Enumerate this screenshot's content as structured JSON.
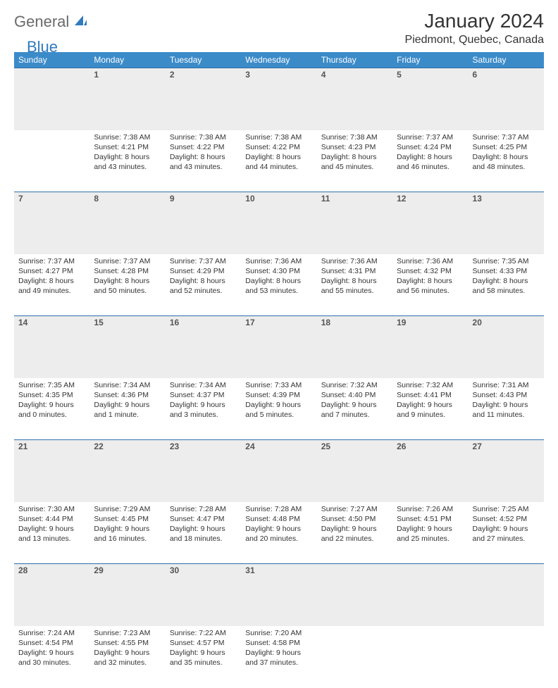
{
  "logo": {
    "text1": "General",
    "text2": "Blue"
  },
  "title": "January 2024",
  "location": "Piedmont, Quebec, Canada",
  "colors": {
    "header_bg": "#3b8bc9",
    "header_text": "#ffffff",
    "daynum_bg": "#ededed",
    "rule": "#2f6ea8",
    "logo_gray": "#6a6a6a",
    "logo_blue": "#2f7bbf"
  },
  "weekdays": [
    "Sunday",
    "Monday",
    "Tuesday",
    "Wednesday",
    "Thursday",
    "Friday",
    "Saturday"
  ],
  "weeks": [
    [
      {
        "num": "",
        "lines": []
      },
      {
        "num": "1",
        "lines": [
          "Sunrise: 7:38 AM",
          "Sunset: 4:21 PM",
          "Daylight: 8 hours",
          "and 43 minutes."
        ]
      },
      {
        "num": "2",
        "lines": [
          "Sunrise: 7:38 AM",
          "Sunset: 4:22 PM",
          "Daylight: 8 hours",
          "and 43 minutes."
        ]
      },
      {
        "num": "3",
        "lines": [
          "Sunrise: 7:38 AM",
          "Sunset: 4:22 PM",
          "Daylight: 8 hours",
          "and 44 minutes."
        ]
      },
      {
        "num": "4",
        "lines": [
          "Sunrise: 7:38 AM",
          "Sunset: 4:23 PM",
          "Daylight: 8 hours",
          "and 45 minutes."
        ]
      },
      {
        "num": "5",
        "lines": [
          "Sunrise: 7:37 AM",
          "Sunset: 4:24 PM",
          "Daylight: 8 hours",
          "and 46 minutes."
        ]
      },
      {
        "num": "6",
        "lines": [
          "Sunrise: 7:37 AM",
          "Sunset: 4:25 PM",
          "Daylight: 8 hours",
          "and 48 minutes."
        ]
      }
    ],
    [
      {
        "num": "7",
        "lines": [
          "Sunrise: 7:37 AM",
          "Sunset: 4:27 PM",
          "Daylight: 8 hours",
          "and 49 minutes."
        ]
      },
      {
        "num": "8",
        "lines": [
          "Sunrise: 7:37 AM",
          "Sunset: 4:28 PM",
          "Daylight: 8 hours",
          "and 50 minutes."
        ]
      },
      {
        "num": "9",
        "lines": [
          "Sunrise: 7:37 AM",
          "Sunset: 4:29 PM",
          "Daylight: 8 hours",
          "and 52 minutes."
        ]
      },
      {
        "num": "10",
        "lines": [
          "Sunrise: 7:36 AM",
          "Sunset: 4:30 PM",
          "Daylight: 8 hours",
          "and 53 minutes."
        ]
      },
      {
        "num": "11",
        "lines": [
          "Sunrise: 7:36 AM",
          "Sunset: 4:31 PM",
          "Daylight: 8 hours",
          "and 55 minutes."
        ]
      },
      {
        "num": "12",
        "lines": [
          "Sunrise: 7:36 AM",
          "Sunset: 4:32 PM",
          "Daylight: 8 hours",
          "and 56 minutes."
        ]
      },
      {
        "num": "13",
        "lines": [
          "Sunrise: 7:35 AM",
          "Sunset: 4:33 PM",
          "Daylight: 8 hours",
          "and 58 minutes."
        ]
      }
    ],
    [
      {
        "num": "14",
        "lines": [
          "Sunrise: 7:35 AM",
          "Sunset: 4:35 PM",
          "Daylight: 9 hours",
          "and 0 minutes."
        ]
      },
      {
        "num": "15",
        "lines": [
          "Sunrise: 7:34 AM",
          "Sunset: 4:36 PM",
          "Daylight: 9 hours",
          "and 1 minute."
        ]
      },
      {
        "num": "16",
        "lines": [
          "Sunrise: 7:34 AM",
          "Sunset: 4:37 PM",
          "Daylight: 9 hours",
          "and 3 minutes."
        ]
      },
      {
        "num": "17",
        "lines": [
          "Sunrise: 7:33 AM",
          "Sunset: 4:39 PM",
          "Daylight: 9 hours",
          "and 5 minutes."
        ]
      },
      {
        "num": "18",
        "lines": [
          "Sunrise: 7:32 AM",
          "Sunset: 4:40 PM",
          "Daylight: 9 hours",
          "and 7 minutes."
        ]
      },
      {
        "num": "19",
        "lines": [
          "Sunrise: 7:32 AM",
          "Sunset: 4:41 PM",
          "Daylight: 9 hours",
          "and 9 minutes."
        ]
      },
      {
        "num": "20",
        "lines": [
          "Sunrise: 7:31 AM",
          "Sunset: 4:43 PM",
          "Daylight: 9 hours",
          "and 11 minutes."
        ]
      }
    ],
    [
      {
        "num": "21",
        "lines": [
          "Sunrise: 7:30 AM",
          "Sunset: 4:44 PM",
          "Daylight: 9 hours",
          "and 13 minutes."
        ]
      },
      {
        "num": "22",
        "lines": [
          "Sunrise: 7:29 AM",
          "Sunset: 4:45 PM",
          "Daylight: 9 hours",
          "and 16 minutes."
        ]
      },
      {
        "num": "23",
        "lines": [
          "Sunrise: 7:28 AM",
          "Sunset: 4:47 PM",
          "Daylight: 9 hours",
          "and 18 minutes."
        ]
      },
      {
        "num": "24",
        "lines": [
          "Sunrise: 7:28 AM",
          "Sunset: 4:48 PM",
          "Daylight: 9 hours",
          "and 20 minutes."
        ]
      },
      {
        "num": "25",
        "lines": [
          "Sunrise: 7:27 AM",
          "Sunset: 4:50 PM",
          "Daylight: 9 hours",
          "and 22 minutes."
        ]
      },
      {
        "num": "26",
        "lines": [
          "Sunrise: 7:26 AM",
          "Sunset: 4:51 PM",
          "Daylight: 9 hours",
          "and 25 minutes."
        ]
      },
      {
        "num": "27",
        "lines": [
          "Sunrise: 7:25 AM",
          "Sunset: 4:52 PM",
          "Daylight: 9 hours",
          "and 27 minutes."
        ]
      }
    ],
    [
      {
        "num": "28",
        "lines": [
          "Sunrise: 7:24 AM",
          "Sunset: 4:54 PM",
          "Daylight: 9 hours",
          "and 30 minutes."
        ]
      },
      {
        "num": "29",
        "lines": [
          "Sunrise: 7:23 AM",
          "Sunset: 4:55 PM",
          "Daylight: 9 hours",
          "and 32 minutes."
        ]
      },
      {
        "num": "30",
        "lines": [
          "Sunrise: 7:22 AM",
          "Sunset: 4:57 PM",
          "Daylight: 9 hours",
          "and 35 minutes."
        ]
      },
      {
        "num": "31",
        "lines": [
          "Sunrise: 7:20 AM",
          "Sunset: 4:58 PM",
          "Daylight: 9 hours",
          "and 37 minutes."
        ]
      },
      {
        "num": "",
        "lines": []
      },
      {
        "num": "",
        "lines": []
      },
      {
        "num": "",
        "lines": []
      }
    ]
  ]
}
